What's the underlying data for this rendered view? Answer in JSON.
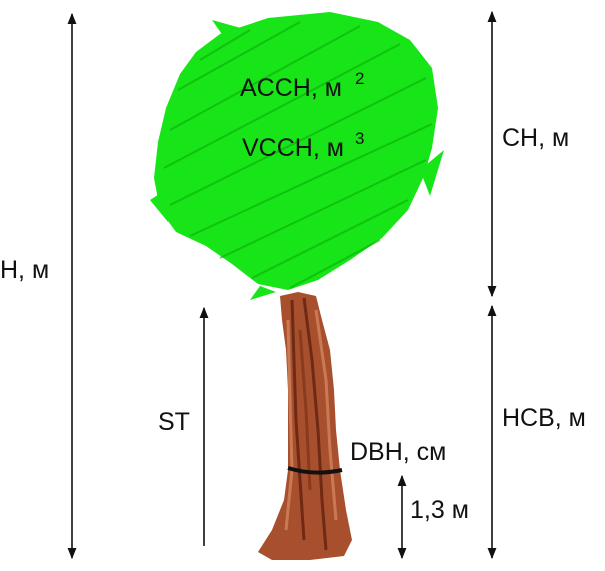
{
  "labels": {
    "total_height": "H, м",
    "crown_height": "CH, м",
    "crown_base_height": "HCB, м",
    "stem": "ST",
    "diameter": "DBH, см",
    "breast_height": "1,3 м",
    "crown_area": "ACCH, м",
    "crown_area_exp": "2",
    "crown_volume": "VCCH, м",
    "crown_volume_exp": "3"
  },
  "colors": {
    "crown": "#17e517",
    "crown_dark": "#0aa60a",
    "trunk": "#a8502e",
    "trunk_dark": "#6e2a14",
    "trunk_light": "#c97a55",
    "line": "#111111"
  }
}
